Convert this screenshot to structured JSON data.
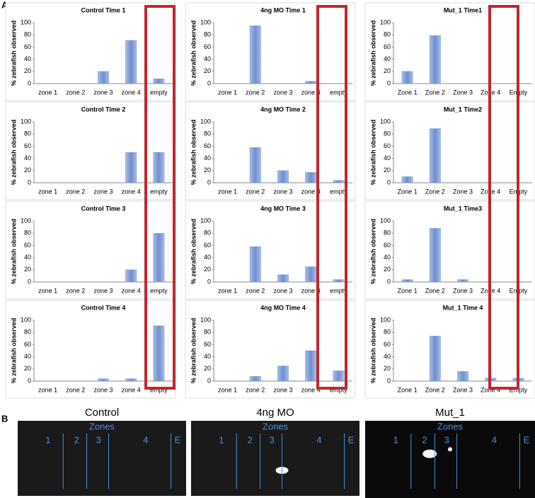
{
  "panel_a_label": "A",
  "chart_data": [
    {
      "type": "bar",
      "title": "Control Time 1",
      "y_label": "% zebrafish observed",
      "categories": [
        "zone 1",
        "zone 2",
        "zone 3",
        "zone 4",
        "empty"
      ],
      "values": [
        0,
        0,
        20,
        71,
        8
      ],
      "color": "#6f8fd0",
      "ylim": [
        0,
        100
      ],
      "yticks": [
        0,
        20,
        40,
        60,
        80,
        100
      ]
    },
    {
      "type": "bar",
      "title": "Control Time 2",
      "y_label": "% zebrafish observed",
      "categories": [
        "zone 1",
        "zone 2",
        "zone 3",
        "zone 4",
        "empty"
      ],
      "values": [
        0,
        0,
        0,
        50,
        50
      ],
      "color": "#6f8fd0",
      "ylim": [
        0,
        100
      ],
      "yticks": [
        0,
        20,
        40,
        60,
        80,
        100
      ]
    },
    {
      "type": "bar",
      "title": "Control Time 3",
      "y_label": "% zebrafish observed",
      "categories": [
        "zone 1",
        "zone 2",
        "zone 3",
        "zone 4",
        "empty"
      ],
      "values": [
        0,
        0,
        0,
        20,
        80
      ],
      "color": "#6f8fd0",
      "ylim": [
        0,
        100
      ],
      "yticks": [
        0,
        20,
        40,
        60,
        80,
        100
      ]
    },
    {
      "type": "bar",
      "title": "Control Time 4",
      "y_label": "% zebrafish observed",
      "categories": [
        "zone 1",
        "zone 2",
        "zone 3",
        "zone 4",
        "empty"
      ],
      "values": [
        0,
        0,
        4,
        4,
        91
      ],
      "color": "#6f8fd0",
      "ylim": [
        0,
        100
      ],
      "yticks": [
        0,
        20,
        40,
        60,
        80,
        100
      ]
    },
    {
      "type": "bar",
      "title": "4ng MO Time 1",
      "y_label": "% zebrafish observed",
      "categories": [
        "zone 1",
        "zone 2",
        "zone 3",
        "zone 4",
        "empty"
      ],
      "values": [
        0,
        95,
        0,
        4,
        0
      ],
      "color": "#6f8fd0",
      "ylim": [
        0,
        100
      ],
      "yticks": [
        0,
        20,
        40,
        60,
        80,
        100
      ]
    },
    {
      "type": "bar",
      "title": "4ng MO Time 2",
      "y_label": "% zebrafish observed",
      "categories": [
        "zone 1",
        "zone 2",
        "zone 3",
        "zone 4",
        "empty"
      ],
      "values": [
        0,
        58,
        20,
        17,
        4
      ],
      "color": "#6f8fd0",
      "ylim": [
        0,
        100
      ],
      "yticks": [
        0,
        20,
        40,
        60,
        80,
        100
      ]
    },
    {
      "type": "bar",
      "title": "4ng MO Time 3",
      "y_label": "% zebrafish observed",
      "categories": [
        "zone 1",
        "zone 2",
        "zone 3",
        "zone 4",
        "empty"
      ],
      "values": [
        0,
        58,
        12,
        25,
        4
      ],
      "color": "#6f8fd0",
      "ylim": [
        0,
        100
      ],
      "yticks": [
        0,
        20,
        40,
        60,
        80,
        100
      ]
    },
    {
      "type": "bar",
      "title": "4ng MO Time 4",
      "y_label": "% zebrafish observed",
      "categories": [
        "zone 1",
        "zone 2",
        "zone 3",
        "zone 4",
        "empty"
      ],
      "values": [
        0,
        8,
        25,
        50,
        17
      ],
      "color": "#6f8fd0",
      "ylim": [
        0,
        100
      ],
      "yticks": [
        0,
        20,
        40,
        60,
        80,
        100
      ]
    },
    {
      "type": "bar",
      "title": "Mut_1 Time1",
      "y_label": "% zebrafish observed",
      "categories": [
        "Zone 1",
        "Zone 2",
        "Zone 3",
        "Zone 4",
        "Empty"
      ],
      "values": [
        20,
        79,
        0,
        0,
        0
      ],
      "color": "#6f8fd0",
      "ylim": [
        0,
        100
      ],
      "yticks": [
        0,
        20,
        40,
        60,
        80,
        100
      ]
    },
    {
      "type": "bar",
      "title": "Mut_1 Time2",
      "y_label": "% zebrafish observed",
      "categories": [
        "Zone 1",
        "Zone 2",
        "Zone 3",
        "Zone 4",
        "Empty"
      ],
      "values": [
        10,
        89,
        0,
        0,
        0
      ],
      "color": "#6f8fd0",
      "ylim": [
        0,
        100
      ],
      "yticks": [
        0,
        20,
        40,
        60,
        80,
        100
      ]
    },
    {
      "type": "bar",
      "title": "Mut_1 Time3",
      "y_label": "% zebrafish observed",
      "categories": [
        "Zone 1",
        "Zone 2",
        "Zone 3",
        "Zone 4",
        "Empty"
      ],
      "values": [
        4,
        88,
        4,
        0,
        0
      ],
      "color": "#6f8fd0",
      "ylim": [
        0,
        100
      ],
      "yticks": [
        0,
        20,
        40,
        60,
        80,
        100
      ]
    },
    {
      "type": "bar",
      "title": "Mut_1 Time 4",
      "y_label": "% zebrafish observed",
      "categories": [
        "Zone 1",
        "Zone 2",
        "Zone 3",
        "Zone 4",
        "Empty"
      ],
      "values": [
        0,
        74,
        16,
        5,
        5
      ],
      "color": "#6f8fd0",
      "ylim": [
        0,
        100
      ],
      "yticks": [
        0,
        20,
        40,
        60,
        80,
        100
      ]
    }
  ],
  "panel_b": {
    "label": "B",
    "images": [
      {
        "title": "Control",
        "zones_title": "Zones",
        "zone_labels": [
          "1",
          "2",
          "3",
          "4",
          "E"
        ]
      },
      {
        "title": "4ng MO",
        "zones_title": "Zones",
        "zone_labels": [
          "1",
          "2",
          "3",
          "4",
          "E"
        ]
      },
      {
        "title": "Mut_1",
        "zones_title": "Zones",
        "zone_labels": [
          "1",
          "2",
          "3",
          "4",
          "E"
        ]
      }
    ]
  }
}
